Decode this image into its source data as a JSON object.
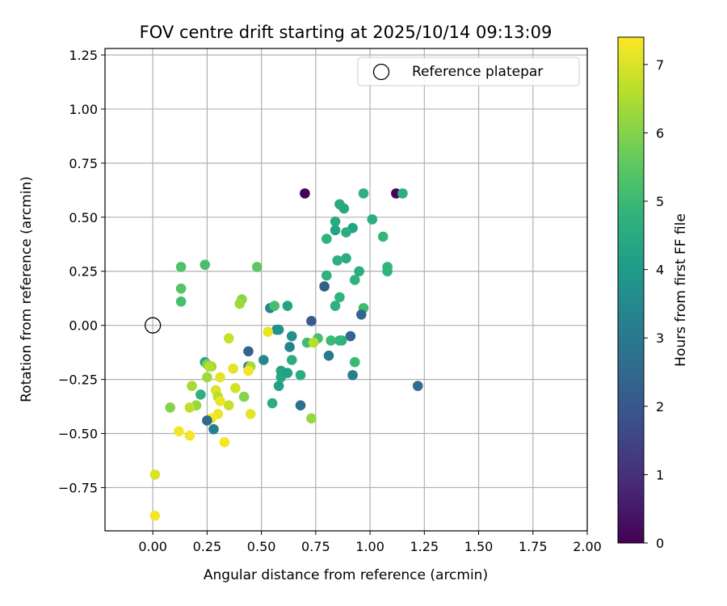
{
  "chart_data": {
    "type": "scatter",
    "title": "FOV centre drift starting at 2025/10/14 09:13:09",
    "xlabel": "Angular distance from reference (arcmin)",
    "ylabel": "Rotation from reference (arcmin)",
    "xlim": [
      -0.22,
      2.0
    ],
    "ylim": [
      -0.95,
      1.28
    ],
    "x_ticks": [
      0.0,
      0.25,
      0.5,
      0.75,
      1.0,
      1.25,
      1.5,
      1.75,
      2.0
    ],
    "x_tick_labels": [
      "0.00",
      "0.25",
      "0.50",
      "0.75",
      "1.00",
      "1.25",
      "1.50",
      "1.75",
      "2.00"
    ],
    "y_ticks": [
      -0.75,
      -0.5,
      -0.25,
      0.0,
      0.25,
      0.5,
      0.75,
      1.0,
      1.25
    ],
    "y_tick_labels": [
      "−0.75",
      "−0.50",
      "−0.25",
      "0.00",
      "0.25",
      "0.50",
      "0.75",
      "1.00",
      "1.25"
    ],
    "grid": true,
    "legend": {
      "placement": "top-right",
      "entries": [
        "Reference platepar"
      ]
    },
    "reference_point": {
      "x": 0.0,
      "y": 0.0
    },
    "colorbar": {
      "label": "Hours from first FF file",
      "colormap": "viridis",
      "range": [
        0,
        7.4
      ],
      "ticks": [
        0,
        1,
        2,
        3,
        4,
        5,
        6,
        7
      ],
      "tick_labels": [
        "0",
        "1",
        "2",
        "3",
        "4",
        "5",
        "6",
        "7"
      ]
    },
    "points": [
      {
        "x": 0.7,
        "y": 0.61,
        "c": 0.1
      },
      {
        "x": 1.12,
        "y": 0.61,
        "c": 0.1
      },
      {
        "x": 0.97,
        "y": 0.61,
        "c": 4.7
      },
      {
        "x": 1.15,
        "y": 0.61,
        "c": 4.7
      },
      {
        "x": 0.86,
        "y": 0.56,
        "c": 4.5
      },
      {
        "x": 0.88,
        "y": 0.54,
        "c": 4.4
      },
      {
        "x": 1.01,
        "y": 0.49,
        "c": 4.6
      },
      {
        "x": 0.84,
        "y": 0.48,
        "c": 4.5
      },
      {
        "x": 0.84,
        "y": 0.44,
        "c": 4.3
      },
      {
        "x": 0.92,
        "y": 0.45,
        "c": 4.3
      },
      {
        "x": 0.89,
        "y": 0.43,
        "c": 4.6
      },
      {
        "x": 0.8,
        "y": 0.4,
        "c": 4.8
      },
      {
        "x": 1.06,
        "y": 0.41,
        "c": 4.9
      },
      {
        "x": 0.85,
        "y": 0.3,
        "c": 4.7
      },
      {
        "x": 0.89,
        "y": 0.31,
        "c": 4.6
      },
      {
        "x": 0.8,
        "y": 0.23,
        "c": 4.7
      },
      {
        "x": 0.95,
        "y": 0.25,
        "c": 4.6
      },
      {
        "x": 1.08,
        "y": 0.27,
        "c": 4.9
      },
      {
        "x": 1.08,
        "y": 0.25,
        "c": 4.8
      },
      {
        "x": 0.93,
        "y": 0.21,
        "c": 4.7
      },
      {
        "x": 0.79,
        "y": 0.18,
        "c": 2.2
      },
      {
        "x": 0.86,
        "y": 0.13,
        "c": 4.8
      },
      {
        "x": 0.84,
        "y": 0.09,
        "c": 4.7
      },
      {
        "x": 0.97,
        "y": 0.08,
        "c": 5.1
      },
      {
        "x": 0.96,
        "y": 0.05,
        "c": 2.4
      },
      {
        "x": 0.73,
        "y": 0.02,
        "c": 2.1
      },
      {
        "x": 0.91,
        "y": -0.05,
        "c": 2.4
      },
      {
        "x": 0.87,
        "y": -0.07,
        "c": 4.6
      },
      {
        "x": 0.86,
        "y": -0.07,
        "c": 4.8
      },
      {
        "x": 0.76,
        "y": -0.06,
        "c": 5.2
      },
      {
        "x": 0.82,
        "y": -0.07,
        "c": 5.0
      },
      {
        "x": 0.71,
        "y": -0.08,
        "c": 5.1
      },
      {
        "x": 0.74,
        "y": -0.08,
        "c": 6.6
      },
      {
        "x": 0.81,
        "y": -0.14,
        "c": 3.0
      },
      {
        "x": 0.93,
        "y": -0.17,
        "c": 5.0
      },
      {
        "x": 0.92,
        "y": -0.23,
        "c": 3.2
      },
      {
        "x": 1.22,
        "y": -0.28,
        "c": 2.6
      },
      {
        "x": 0.68,
        "y": -0.23,
        "c": 4.6
      },
      {
        "x": 0.73,
        "y": -0.43,
        "c": 6.2
      },
      {
        "x": 0.68,
        "y": -0.37,
        "c": 2.7
      },
      {
        "x": 0.55,
        "y": -0.36,
        "c": 4.6
      },
      {
        "x": 0.58,
        "y": -0.28,
        "c": 4.2
      },
      {
        "x": 0.59,
        "y": -0.24,
        "c": 4.4
      },
      {
        "x": 0.59,
        "y": -0.21,
        "c": 4.3
      },
      {
        "x": 0.62,
        "y": -0.22,
        "c": 4.2
      },
      {
        "x": 0.64,
        "y": -0.16,
        "c": 4.6
      },
      {
        "x": 0.51,
        "y": -0.16,
        "c": 3.5
      },
      {
        "x": 0.63,
        "y": -0.1,
        "c": 3.3
      },
      {
        "x": 0.64,
        "y": -0.05,
        "c": 3.7
      },
      {
        "x": 0.57,
        "y": -0.02,
        "c": 3.6
      },
      {
        "x": 0.58,
        "y": -0.02,
        "c": 3.8
      },
      {
        "x": 0.54,
        "y": 0.08,
        "c": 3.5
      },
      {
        "x": 0.56,
        "y": 0.09,
        "c": 5.2
      },
      {
        "x": 0.62,
        "y": 0.09,
        "c": 4.3
      },
      {
        "x": 0.48,
        "y": 0.27,
        "c": 5.5
      },
      {
        "x": 0.41,
        "y": 0.12,
        "c": 6.1
      },
      {
        "x": 0.4,
        "y": 0.1,
        "c": 6.3
      },
      {
        "x": 0.44,
        "y": -0.12,
        "c": 2.4
      },
      {
        "x": 0.44,
        "y": -0.19,
        "c": 3.0
      },
      {
        "x": 0.45,
        "y": -0.19,
        "c": 6.4
      },
      {
        "x": 0.44,
        "y": -0.21,
        "c": 7.3
      },
      {
        "x": 0.53,
        "y": -0.03,
        "c": 7.2
      },
      {
        "x": 0.35,
        "y": -0.06,
        "c": 6.8
      },
      {
        "x": 0.37,
        "y": -0.2,
        "c": 7.1
      },
      {
        "x": 0.24,
        "y": -0.17,
        "c": 4.4
      },
      {
        "x": 0.25,
        "y": -0.18,
        "c": 5.9
      },
      {
        "x": 0.27,
        "y": -0.19,
        "c": 6.3
      },
      {
        "x": 0.26,
        "y": -0.19,
        "c": 6.6
      },
      {
        "x": 0.25,
        "y": -0.24,
        "c": 6.3
      },
      {
        "x": 0.31,
        "y": -0.24,
        "c": 7.1
      },
      {
        "x": 0.38,
        "y": -0.29,
        "c": 6.9
      },
      {
        "x": 0.42,
        "y": -0.33,
        "c": 6.0
      },
      {
        "x": 0.18,
        "y": -0.28,
        "c": 6.4
      },
      {
        "x": 0.22,
        "y": -0.32,
        "c": 4.7
      },
      {
        "x": 0.29,
        "y": -0.3,
        "c": 7.0
      },
      {
        "x": 0.3,
        "y": -0.33,
        "c": 6.6
      },
      {
        "x": 0.31,
        "y": -0.35,
        "c": 7.2
      },
      {
        "x": 0.35,
        "y": -0.37,
        "c": 6.8
      },
      {
        "x": 0.2,
        "y": -0.37,
        "c": 6.2
      },
      {
        "x": 0.17,
        "y": -0.38,
        "c": 6.7
      },
      {
        "x": 0.08,
        "y": -0.38,
        "c": 6.0
      },
      {
        "x": 0.45,
        "y": -0.41,
        "c": 7.1
      },
      {
        "x": 0.3,
        "y": -0.41,
        "c": 7.2
      },
      {
        "x": 0.27,
        "y": -0.43,
        "c": 7.3
      },
      {
        "x": 0.25,
        "y": -0.44,
        "c": 2.5
      },
      {
        "x": 0.28,
        "y": -0.48,
        "c": 3.2
      },
      {
        "x": 0.12,
        "y": -0.49,
        "c": 7.3
      },
      {
        "x": 0.17,
        "y": -0.51,
        "c": 7.3
      },
      {
        "x": 0.33,
        "y": -0.54,
        "c": 7.3
      },
      {
        "x": 0.13,
        "y": 0.27,
        "c": 5.3
      },
      {
        "x": 0.24,
        "y": 0.28,
        "c": 5.2
      },
      {
        "x": 0.13,
        "y": 0.17,
        "c": 5.4
      },
      {
        "x": 0.13,
        "y": 0.11,
        "c": 5.2
      },
      {
        "x": 0.01,
        "y": -0.69,
        "c": 7.0
      },
      {
        "x": 0.01,
        "y": -0.88,
        "c": 7.3
      }
    ]
  }
}
